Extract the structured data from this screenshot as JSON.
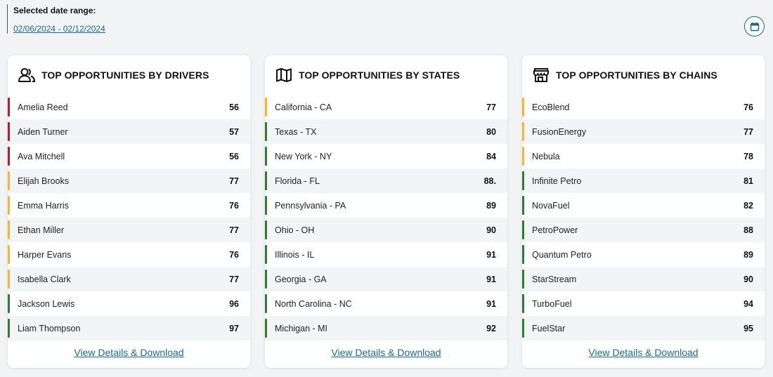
{
  "colors": {
    "red": "#b0202e",
    "yellow": "#f4b731",
    "green": "#2f7d32",
    "accent": "#1d6a88"
  },
  "date_range": {
    "label": "Selected date range:",
    "value": "02/06/2024 - 02/12/2024"
  },
  "calendar": {
    "icon": "calendar-icon"
  },
  "cards": [
    {
      "title": "TOP OPPORTUNITIES BY DRIVERS",
      "icon": "users-icon",
      "link": "View Details & Download",
      "rows": [
        {
          "name": "Amelia Reed",
          "value": "56",
          "status": "red"
        },
        {
          "name": "Aiden Turner",
          "value": "57",
          "status": "red"
        },
        {
          "name": "Ava Mitchell",
          "value": "56",
          "status": "red"
        },
        {
          "name": "Elijah Brooks",
          "value": "77",
          "status": "yellow"
        },
        {
          "name": "Emma Harris",
          "value": "76",
          "status": "yellow"
        },
        {
          "name": "Ethan Miller",
          "value": "77",
          "status": "yellow"
        },
        {
          "name": "Harper Evans",
          "value": "76",
          "status": "yellow"
        },
        {
          "name": "Isabella Clark",
          "value": "77",
          "status": "yellow"
        },
        {
          "name": "Jackson Lewis",
          "value": "96",
          "status": "green"
        },
        {
          "name": "Liam Thompson",
          "value": "97",
          "status": "green"
        }
      ]
    },
    {
      "title": "TOP OPPORTUNITIES BY STATES",
      "icon": "map-icon",
      "link": "View Details & Download",
      "rows": [
        {
          "name": "California - CA",
          "value": "77",
          "status": "yellow"
        },
        {
          "name": "Texas - TX",
          "value": "80",
          "status": "green"
        },
        {
          "name": "New York - NY",
          "value": "84",
          "status": "green"
        },
        {
          "name": "Florida - FL",
          "value": "88.",
          "status": "green"
        },
        {
          "name": "Pennsylvania - PA",
          "value": "89",
          "status": "green"
        },
        {
          "name": "Ohio - OH",
          "value": "90",
          "status": "green"
        },
        {
          "name": "Illinois - IL",
          "value": "91",
          "status": "green"
        },
        {
          "name": "Georgia - GA",
          "value": "91",
          "status": "green"
        },
        {
          "name": "North Carolina - NC",
          "value": "91",
          "status": "green"
        },
        {
          "name": "Michigan - MI",
          "value": "92",
          "status": "green"
        }
      ]
    },
    {
      "title": "TOP OPPORTUNITIES BY CHAINS",
      "icon": "store-icon",
      "link": "View Details & Download",
      "rows": [
        {
          "name": "EcoBlend",
          "value": "76",
          "status": "yellow"
        },
        {
          "name": "FusionEnergy",
          "value": "77",
          "status": "yellow"
        },
        {
          "name": "Nebula",
          "value": "78",
          "status": "yellow"
        },
        {
          "name": "Infinite Petro",
          "value": "81",
          "status": "green"
        },
        {
          "name": "NovaFuel",
          "value": "82",
          "status": "green"
        },
        {
          "name": "PetroPower",
          "value": "88",
          "status": "green"
        },
        {
          "name": "Quantum Petro",
          "value": "89",
          "status": "green"
        },
        {
          "name": "StarStream",
          "value": "90",
          "status": "green"
        },
        {
          "name": "TurboFuel",
          "value": "94",
          "status": "green"
        },
        {
          "name": "FuelStar",
          "value": "95",
          "status": "green"
        }
      ]
    }
  ]
}
